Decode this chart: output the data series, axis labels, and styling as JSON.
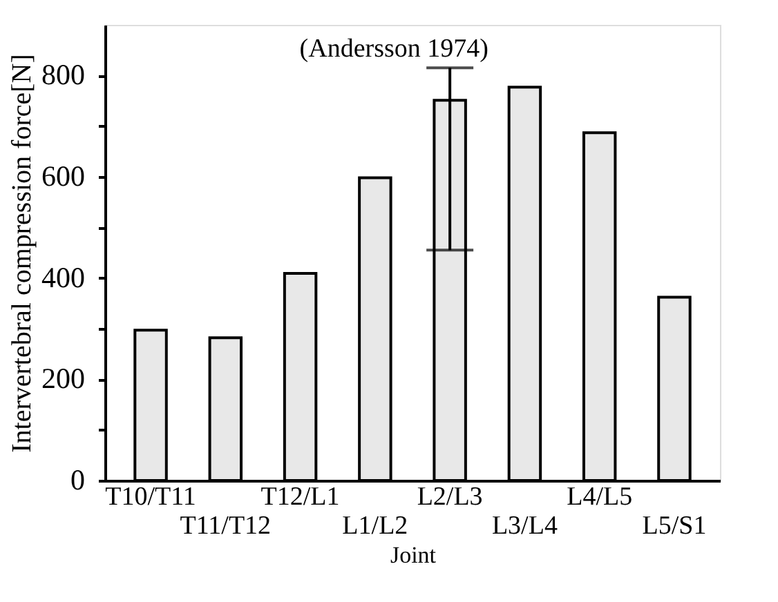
{
  "chart_data": {
    "type": "bar",
    "xlabel": "Joint",
    "ylabel": "Intervertebral compression force[N]",
    "categories": [
      "T10/T11",
      "T11/T12",
      "T12/L1",
      "L1/L2",
      "L2/L3",
      "L3/L4",
      "L4/L5",
      "L5/S1"
    ],
    "values": [
      297,
      282,
      409,
      598,
      751,
      777,
      687,
      362
    ],
    "errors": [
      null,
      null,
      null,
      null,
      [
        455,
        815
      ],
      null,
      null,
      null
    ],
    "color": "#e8e8e8",
    "ylim": [
      0,
      900
    ],
    "yticks": [
      0,
      {
        "value": 100,
        "label": null
      },
      200,
      {
        "value": 300,
        "label": null
      },
      400,
      {
        "value": 500,
        "label": null
      },
      600,
      {
        "value": 700,
        "label": null
      },
      800
    ],
    "annotations": [
      "(Andersson 1974)"
    ],
    "grid": false
  }
}
